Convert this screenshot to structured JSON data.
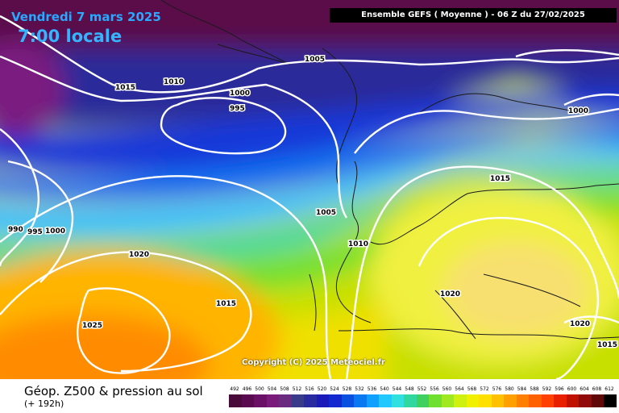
{
  "header": {
    "date": "Vendredi 7 mars 2025",
    "local_time": "7:00 locale",
    "run_info": "Ensemble GEFS  ( Moyenne )  - 06 Z du 27/02/2025"
  },
  "map": {
    "copyright": "Copyright (C) 2025 Meteociel.fr",
    "isobar_labels": [
      "1015",
      "1010",
      "1005",
      "1000",
      "995",
      "1000",
      "1015",
      "1005",
      "1010",
      "990",
      "995",
      "1000",
      "1020",
      "1015",
      "1025",
      "1020",
      "1020",
      "1015"
    ]
  },
  "footer": {
    "parameter": "Géop. Z500 & pression au sol",
    "lead_time": "(+ 192h)"
  },
  "color_scale": {
    "ticks": [
      "492",
      "496",
      "500",
      "504",
      "508",
      "512",
      "516",
      "520",
      "524",
      "528",
      "532",
      "536",
      "540",
      "544",
      "548",
      "552",
      "556",
      "560",
      "564",
      "568",
      "572",
      "576",
      "580",
      "584",
      "588",
      "592",
      "596",
      "600",
      "604",
      "608",
      "612"
    ],
    "colors": [
      "#4a0a3a",
      "#5a0a50",
      "#6a1066",
      "#7a1a7a",
      "#6a2a80",
      "#3a3a8a",
      "#2a2aa0",
      "#1a1ab8",
      "#1428d0",
      "#0a50e0",
      "#0a78f0",
      "#10a0ff",
      "#20c8ff",
      "#30e0e0",
      "#30d8a0",
      "#40d060",
      "#70e030",
      "#a0e820",
      "#d0f010",
      "#f0f000",
      "#ffe000",
      "#ffc000",
      "#ffa000",
      "#ff8000",
      "#ff6000",
      "#ff4000",
      "#e82000",
      "#c01000",
      "#900a0a",
      "#600808",
      "#000000"
    ]
  }
}
